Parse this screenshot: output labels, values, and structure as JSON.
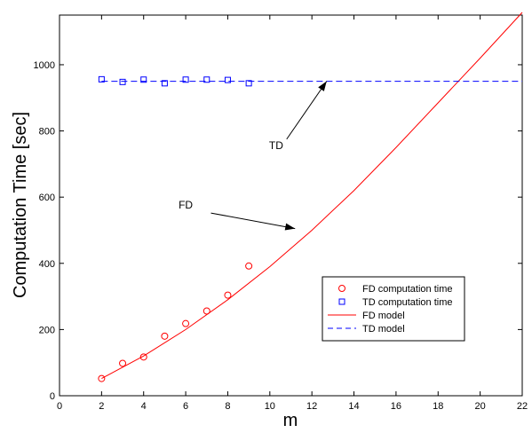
{
  "chart_data": {
    "type": "scatter",
    "xlabel": "m",
    "ylabel": "Computation  Time [sec]",
    "xlim": [
      0,
      22
    ],
    "ylim": [
      0,
      1150
    ],
    "xticks": [
      0,
      2,
      4,
      6,
      8,
      10,
      12,
      14,
      16,
      18,
      20,
      22
    ],
    "yticks": [
      0,
      200,
      400,
      600,
      800,
      1000
    ],
    "grid": false,
    "legend_position": "lower-right",
    "series": [
      {
        "name": "FD  computation  time",
        "kind": "scatter",
        "marker": "circle",
        "color": "#ff0000",
        "x": [
          2,
          3,
          4,
          5,
          6,
          7,
          8,
          9
        ],
        "y": [
          52,
          98,
          117,
          180,
          218,
          256,
          304,
          392
        ]
      },
      {
        "name": "TD  computation  time",
        "kind": "scatter",
        "marker": "square",
        "color": "#0000ff",
        "x": [
          2,
          3,
          4,
          5,
          6,
          7,
          8,
          9
        ],
        "y": [
          956,
          948,
          955,
          944,
          955,
          955,
          954,
          944
        ]
      },
      {
        "name": "FD  model",
        "kind": "line",
        "style": "solid",
        "color": "#ff0000",
        "x": [
          2,
          4,
          6,
          8,
          10,
          12,
          14,
          16,
          18,
          20,
          22
        ],
        "y": [
          52,
          120,
          200,
          290,
          390,
          500,
          620,
          750,
          885,
          1020,
          1158
        ]
      },
      {
        "name": "TD  model",
        "kind": "line",
        "style": "dashed",
        "color": "#0000ff",
        "x": [
          2,
          22
        ],
        "y": [
          950,
          950
        ]
      }
    ],
    "annotations": [
      {
        "text": "TD",
        "text_x": 10.3,
        "text_y": 745,
        "arrow_from": [
          10.8,
          775
        ],
        "arrow_to": [
          12.7,
          950
        ]
      },
      {
        "text": "FD",
        "text_x": 6,
        "text_y": 565,
        "arrow_from": [
          7.2,
          552
        ],
        "arrow_to": [
          11.2,
          505
        ]
      }
    ]
  }
}
